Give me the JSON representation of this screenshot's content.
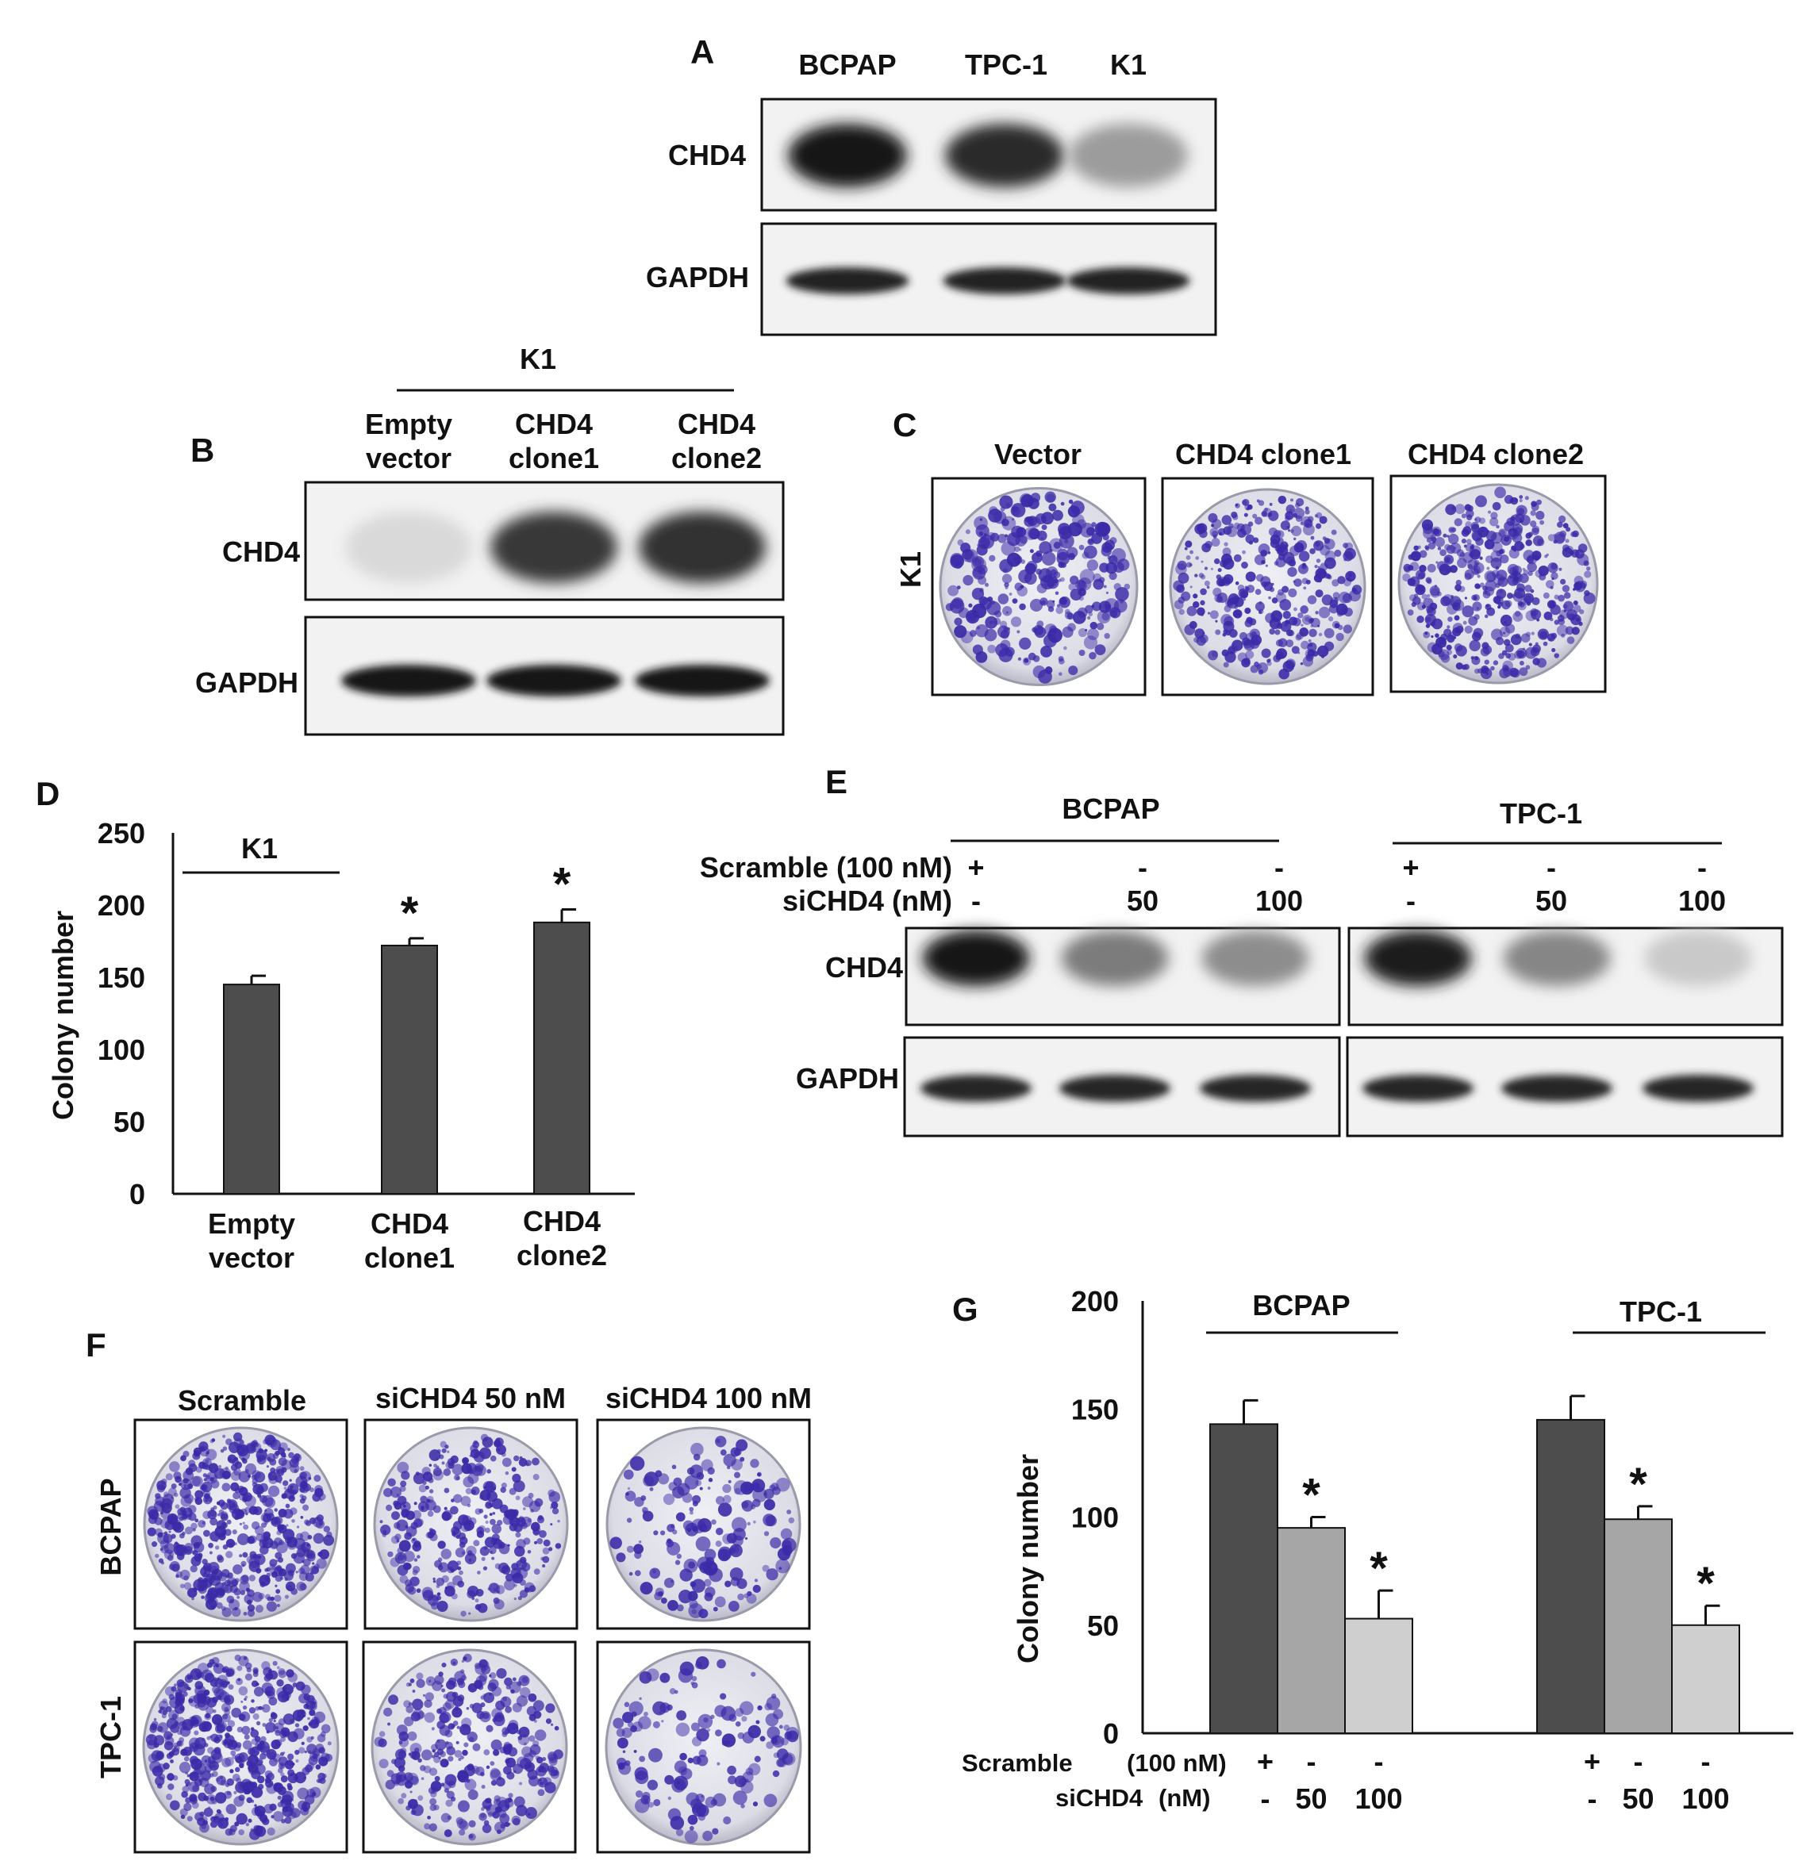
{
  "panel_letters": {
    "a": "A",
    "b": "B",
    "c": "C",
    "d": "D",
    "e": "E",
    "f": "F",
    "g": "G"
  },
  "panel_a": {
    "lanes": [
      "BCPAP",
      "TPC-1",
      "K1"
    ],
    "rows": [
      "CHD4",
      "GAPDH"
    ],
    "chd4_intensity": [
      0.95,
      0.85,
      0.35
    ],
    "gapdh_intensity": [
      0.9,
      0.9,
      0.9
    ]
  },
  "panel_b": {
    "group_label": "K1",
    "lanes": [
      [
        "Empty",
        "vector"
      ],
      [
        "CHD4",
        "clone1"
      ],
      [
        "CHD4",
        "clone2"
      ]
    ],
    "rows": [
      "CHD4",
      "GAPDH"
    ],
    "chd4_intensity": [
      0.08,
      0.8,
      0.82
    ],
    "gapdh_intensity": [
      0.95,
      0.95,
      0.95
    ]
  },
  "panel_c": {
    "row_label": "K1",
    "columns": [
      "Vector",
      "CHD4 clone1",
      "CHD4 clone2"
    ],
    "colony_density": [
      0.45,
      0.6,
      0.75
    ]
  },
  "panel_d": {
    "ylabel": "Colony number",
    "group_label": "K1",
    "categories": [
      [
        "Empty",
        "vector"
      ],
      [
        "CHD4",
        "clone1"
      ],
      [
        "CHD4",
        "clone2"
      ]
    ],
    "significance": [
      "",
      "*",
      "*"
    ],
    "yticks": [
      "0",
      "50",
      "100",
      "150",
      "200",
      "250"
    ]
  },
  "panel_e": {
    "groups": [
      "BCPAP",
      "TPC-1"
    ],
    "scramble_label": "Scramble (100 nM)",
    "sichd4_label": "siCHD4 (nM)",
    "scramble_row": [
      "+",
      "-",
      "-",
      "+",
      "-",
      "-"
    ],
    "sichd4_row": [
      "-",
      "50",
      "100",
      "-",
      "50",
      "100"
    ],
    "rows": [
      "CHD4",
      "GAPDH"
    ],
    "chd4_intensity": [
      0.95,
      0.5,
      0.42,
      0.92,
      0.45,
      0.15
    ],
    "gapdh_intensity": [
      0.88,
      0.88,
      0.88,
      0.88,
      0.88,
      0.88
    ]
  },
  "panel_f": {
    "columns": [
      "Scramble",
      "siCHD4 50 nM",
      "siCHD4 100 nM"
    ],
    "rows": [
      "BCPAP",
      "TPC-1"
    ],
    "colony_density": [
      [
        0.95,
        0.55,
        0.25
      ],
      [
        0.95,
        0.55,
        0.2
      ]
    ]
  },
  "panel_g": {
    "ylabel": "Colony number",
    "groups": [
      "BCPAP",
      "TPC-1"
    ],
    "scramble_label": "Scramble",
    "scramble_unit": "(100 nM)",
    "sichd4_label": "siCHD4",
    "sichd4_unit": "(nM)",
    "scramble_row": [
      "+",
      "-",
      "-",
      "+",
      "-",
      "-"
    ],
    "sichd4_row": [
      "-",
      "50",
      "100",
      "-",
      "50",
      "100"
    ],
    "significance": [
      "",
      "*",
      "*",
      "",
      "*",
      "*"
    ],
    "yticks": [
      "0",
      "50",
      "100",
      "150",
      "200"
    ]
  },
  "colors": {
    "bar_dark": "#4d4d4d",
    "bar_mid": "#a6a6a6",
    "bar_light": "#cfcfcf",
    "stain": "#3b2aa8",
    "plate": "#e4e4ec"
  },
  "chart_data": [
    {
      "type": "bar",
      "panel": "D",
      "categories": [
        "Empty vector",
        "CHD4 clone1",
        "CHD4 clone2"
      ],
      "values": [
        145,
        172,
        188
      ],
      "errors": [
        6,
        5,
        9
      ],
      "ylabel": "Colony number",
      "ylim": [
        0,
        250
      ],
      "legend": "none"
    },
    {
      "type": "bar",
      "panel": "G",
      "categories": [
        "BCPAP",
        "TPC-1"
      ],
      "series": [
        {
          "name": "Scramble (100 nM)",
          "values": [
            143,
            145
          ],
          "errors": [
            11,
            11
          ]
        },
        {
          "name": "siCHD4 50 nM",
          "values": [
            95,
            99
          ],
          "errors": [
            5,
            6
          ]
        },
        {
          "name": "siCHD4 100 nM",
          "values": [
            53,
            50
          ],
          "errors": [
            13,
            9
          ]
        }
      ],
      "ylabel": "Colony number",
      "ylim": [
        0,
        200
      ],
      "legend": "none"
    }
  ]
}
